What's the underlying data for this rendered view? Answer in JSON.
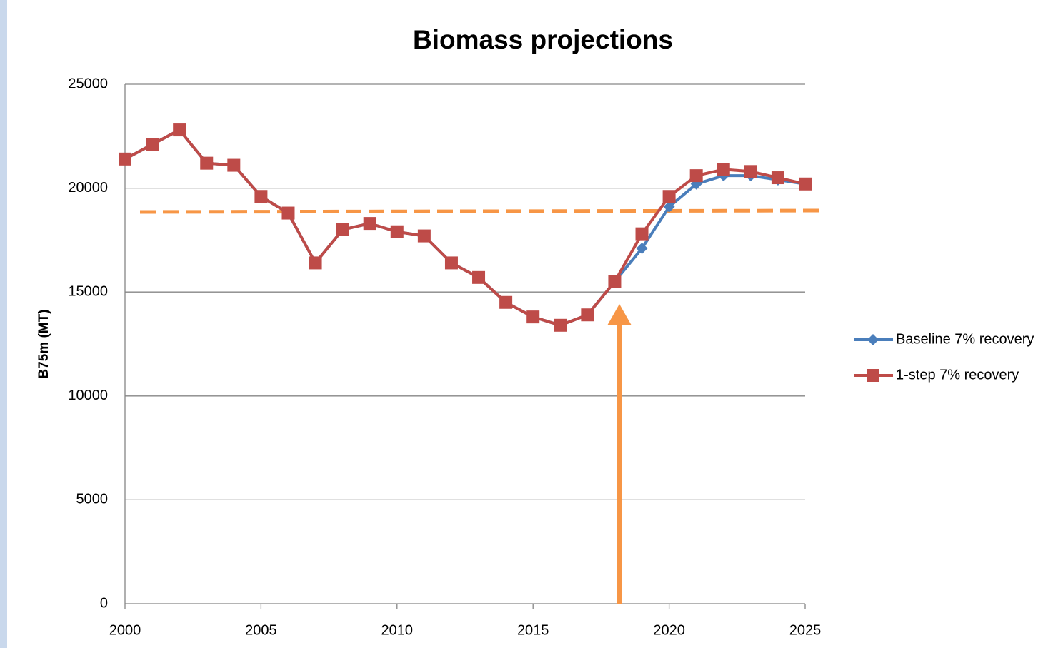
{
  "chart_data": {
    "type": "line",
    "title": "Biomass projections",
    "y_label": "B75m (MT)",
    "x": [
      2000,
      2001,
      2002,
      2003,
      2004,
      2005,
      2006,
      2007,
      2008,
      2009,
      2010,
      2011,
      2012,
      2013,
      2014,
      2015,
      2016,
      2017,
      2018,
      2019,
      2020,
      2021,
      2022,
      2023,
      2024,
      2025
    ],
    "series": [
      {
        "name": "Baseline 7% recovery",
        "color": "#4a7ebb",
        "marker": "diamond",
        "values": [
          21400,
          22100,
          22800,
          21200,
          21100,
          19600,
          18800,
          16400,
          18000,
          18300,
          17900,
          17700,
          16400,
          15700,
          14500,
          13800,
          13400,
          13900,
          15500,
          17100,
          19100,
          20200,
          20600,
          20600,
          20400,
          20200
        ]
      },
      {
        "name": "1-step 7% recovery",
        "color": "#be4b48",
        "marker": "square",
        "values": [
          21400,
          22100,
          22800,
          21200,
          21100,
          19600,
          18800,
          16400,
          18000,
          18300,
          17900,
          17700,
          16400,
          15700,
          14500,
          13800,
          13400,
          13900,
          15500,
          17800,
          19600,
          20600,
          20900,
          20800,
          20500,
          20200
        ]
      }
    ],
    "xlim": [
      2000,
      2025
    ],
    "xticks": [
      2000,
      2005,
      2010,
      2015,
      2020,
      2025
    ],
    "ylim": [
      0,
      25000
    ],
    "yticks": [
      0,
      5000,
      10000,
      15000,
      20000,
      25000
    ],
    "grid": true,
    "legend": "right"
  }
}
